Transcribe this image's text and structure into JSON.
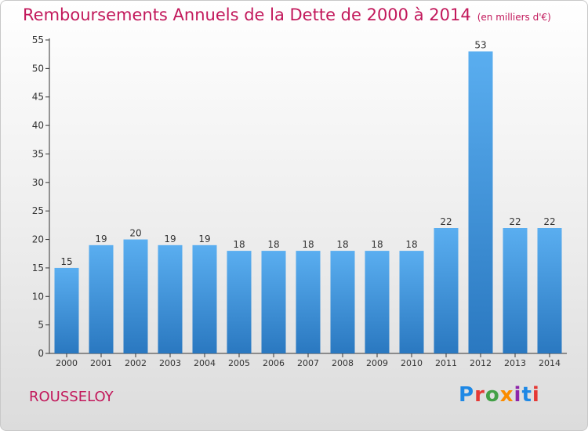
{
  "header": {
    "title": "Remboursements Annuels de la Dette de 2000 à 2014",
    "unit": "(en milliers d'€)"
  },
  "footer": {
    "commune": "ROUSSELOY",
    "brand": "Proxiti",
    "brand_colors": [
      "#1e88e5",
      "#e53935",
      "#43a047",
      "#fb8c00",
      "#8e24aa",
      "#1e88e5",
      "#e53935"
    ]
  },
  "chart_data": {
    "type": "bar",
    "categories": [
      "2000",
      "2001",
      "2002",
      "2003",
      "2004",
      "2005",
      "2006",
      "2007",
      "2008",
      "2009",
      "2010",
      "2011",
      "2012",
      "2013",
      "2014"
    ],
    "values": [
      15,
      19,
      20,
      19,
      19,
      18,
      18,
      18,
      18,
      18,
      18,
      22,
      53,
      22,
      22
    ],
    "title": "Remboursements Annuels de la Dette de 2000 à 2014",
    "xlabel": "",
    "ylabel": "",
    "ylim": [
      0,
      55
    ],
    "yticks": [
      0,
      5,
      10,
      15,
      20,
      25,
      30,
      35,
      40,
      45,
      50,
      55
    ],
    "grid": false,
    "bar_color_top": "#5aaef0",
    "bar_color_bottom": "#2a78c0",
    "axis_color": "#333333",
    "text_color": "#333333",
    "title_color": "#c2185b"
  }
}
